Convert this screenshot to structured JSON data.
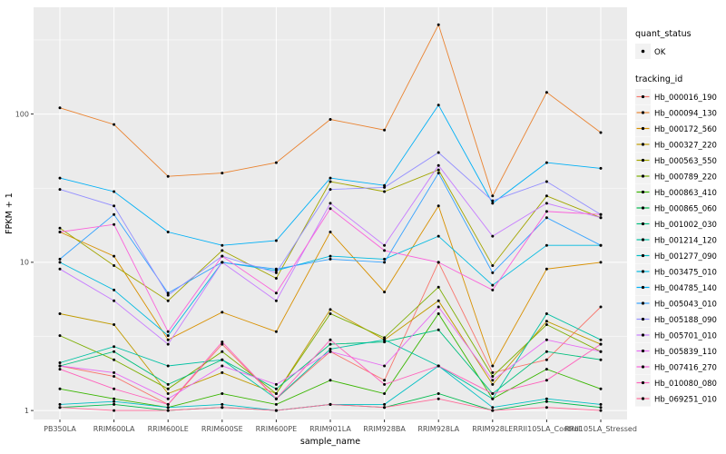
{
  "chart_data": {
    "type": "line",
    "title": "",
    "x_label": "sample_name",
    "y_label": "FPKM + 1",
    "y_scale": "log10",
    "y_ticks": [
      1,
      10,
      100
    ],
    "y_minor_ticks_log10": [
      0.5,
      1.5,
      2.5
    ],
    "ylim": [
      0.87,
      525
    ],
    "panel_bg": "#EBEBEB",
    "grid_color": "#FFFFFF",
    "point_color": "#000000",
    "tick_label_color": "#4D4D4D",
    "legend": {
      "quant_status_title": "quant_status",
      "quant_status_items": [
        "OK"
      ],
      "tracking_id_title": "tracking_id",
      "key_bg": "#F2F2F2"
    },
    "categories": [
      "PB350LA",
      "RRIM600LA",
      "RRIM600LE",
      "RRIM600SE",
      "RRIM600PE",
      "RRIM901LA",
      "RRIM928BA",
      "RRIM928LA",
      "RRIM928LE",
      "RRII105LA_Control",
      "RRII105LA_Stressed"
    ],
    "series": [
      {
        "name": "Hb_000016_190",
        "color": "#F8766D",
        "values": [
          2.0,
          1.7,
          1.1,
          2.8,
          1.2,
          2.5,
          1.6,
          10,
          1.8,
          2.2,
          5.0
        ]
      },
      {
        "name": "Hb_000094_130",
        "color": "#EA8331",
        "values": [
          110,
          85,
          38,
          40,
          47,
          92,
          78,
          400,
          28,
          140,
          75
        ]
      },
      {
        "name": "Hb_000172_560",
        "color": "#D89000",
        "values": [
          16,
          11,
          3.0,
          4.6,
          3.4,
          16,
          6.3,
          24,
          2.0,
          9.0,
          10
        ]
      },
      {
        "name": "Hb_000327_220",
        "color": "#C09B00",
        "values": [
          4.5,
          3.8,
          1.3,
          1.8,
          1.3,
          4.8,
          3.0,
          5.5,
          1.5,
          4.0,
          2.8
        ]
      },
      {
        "name": "Hb_000563_550",
        "color": "#A3A500",
        "values": [
          17,
          9.5,
          5.5,
          12,
          7.8,
          35,
          30,
          42,
          9.5,
          28,
          20
        ]
      },
      {
        "name": "Hb_000789_220",
        "color": "#7CAE00",
        "values": [
          3.2,
          2.2,
          1.4,
          2.5,
          1.3,
          4.5,
          3.1,
          6.8,
          1.7,
          3.8,
          2.5
        ]
      },
      {
        "name": "Hb_000863_410",
        "color": "#39B600",
        "values": [
          1.4,
          1.2,
          1.05,
          1.3,
          1.1,
          1.6,
          1.3,
          4.5,
          1.2,
          1.9,
          1.4
        ]
      },
      {
        "name": "Hb_000865_060",
        "color": "#00BB4E",
        "values": [
          1.05,
          1.1,
          1.0,
          1.05,
          1.0,
          1.1,
          1.05,
          1.3,
          1.0,
          1.15,
          1.05
        ]
      },
      {
        "name": "Hb_001002_030",
        "color": "#00BF7D",
        "values": [
          2.0,
          2.5,
          1.5,
          2.2,
          1.4,
          2.8,
          2.9,
          3.5,
          1.3,
          2.5,
          2.2
        ]
      },
      {
        "name": "Hb_001214_120",
        "color": "#00C1A3",
        "values": [
          2.1,
          2.7,
          2.0,
          2.2,
          1.2,
          2.6,
          3.0,
          2.0,
          1.2,
          4.5,
          3.0
        ]
      },
      {
        "name": "Hb_001277_090",
        "color": "#00BFC4",
        "values": [
          1.1,
          1.15,
          1.05,
          1.1,
          1.0,
          1.1,
          1.1,
          2.0,
          1.05,
          1.2,
          1.1
        ]
      },
      {
        "name": "Hb_003475_010",
        "color": "#00BAE0",
        "values": [
          10,
          6.5,
          3.2,
          10,
          8.8,
          11,
          10.5,
          15,
          7.0,
          13,
          13
        ]
      },
      {
        "name": "Hb_004785_140",
        "color": "#00B0F6",
        "values": [
          37,
          30,
          16,
          13,
          14,
          37,
          33,
          115,
          25,
          47,
          43
        ]
      },
      {
        "name": "Hb_005043_010",
        "color": "#35A2FF",
        "values": [
          10.5,
          21,
          6.2,
          10,
          9.0,
          10.5,
          10,
          40,
          8.5,
          20,
          13
        ]
      },
      {
        "name": "Hb_005188_090",
        "color": "#9590FF",
        "values": [
          31,
          24,
          6.0,
          11,
          8.5,
          31,
          32,
          55,
          26,
          35,
          21
        ]
      },
      {
        "name": "Hb_005701_010",
        "color": "#C77CFF",
        "values": [
          9.0,
          5.5,
          2.8,
          10,
          5.5,
          25,
          13,
          45,
          15,
          25,
          20
        ]
      },
      {
        "name": "Hb_005839_110",
        "color": "#E76BF3",
        "values": [
          2.0,
          1.8,
          1.2,
          2.0,
          1.5,
          2.5,
          2.0,
          5.0,
          1.6,
          3.0,
          2.5
        ]
      },
      {
        "name": "Hb_007416_270",
        "color": "#FA62DB",
        "values": [
          16,
          18,
          3.4,
          11,
          6.2,
          23,
          12,
          10,
          6.5,
          22,
          21
        ]
      },
      {
        "name": "Hb_010080_080",
        "color": "#FF62BC",
        "values": [
          1.9,
          1.4,
          1.1,
          2.9,
          1.2,
          3.0,
          1.5,
          2.0,
          1.3,
          1.6,
          2.8
        ]
      },
      {
        "name": "Hb_069251_010",
        "color": "#FF6A98",
        "values": [
          1.05,
          1.0,
          1.0,
          1.05,
          1.0,
          1.1,
          1.05,
          1.2,
          1.0,
          1.05,
          1.0
        ]
      }
    ]
  }
}
